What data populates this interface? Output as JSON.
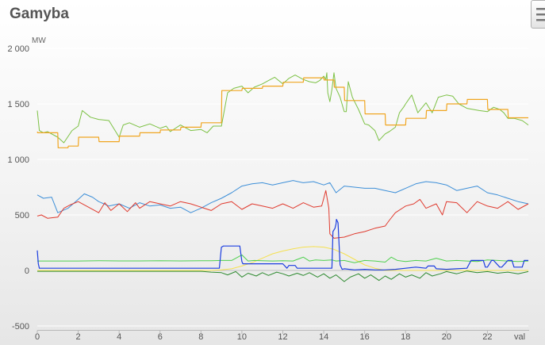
{
  "title": "Gamyba",
  "menu_icon": "hamburger-menu-icon",
  "chart_data": {
    "type": "line",
    "title": "Gamyba",
    "ylabel": "MW",
    "xlabel": "val",
    "ylim": [
      -500,
      2000
    ],
    "xlim": [
      0,
      24
    ],
    "grid": true,
    "legend": "none",
    "y_ticks": [
      -500,
      0,
      500,
      1000,
      1500,
      2000
    ],
    "y_tick_labels": [
      "-500",
      "0",
      "500",
      "1 000",
      "1 500",
      "2 000"
    ],
    "x_ticks": [
      0,
      2,
      4,
      6,
      8,
      10,
      12,
      14,
      16,
      18,
      20,
      22
    ],
    "x_tick_labels": [
      "0",
      "2",
      "4",
      "6",
      "8",
      "10",
      "12",
      "14",
      "16",
      "18",
      "20",
      "22"
    ],
    "series": [
      {
        "color": "#7cc144",
        "width": 1,
        "x": [
          0,
          0.1,
          0.3,
          0.5,
          1,
          1.3,
          1.7,
          2,
          2.2,
          2.6,
          3,
          3.5,
          4,
          4.2,
          4.5,
          5,
          5.5,
          6,
          6.3,
          6.5,
          7,
          7.5,
          8,
          8.3,
          8.6,
          9,
          9.3,
          9.6,
          10,
          10.3,
          10.6,
          11,
          11.3,
          11.6,
          12,
          12.3,
          12.6,
          13,
          13.3,
          13.6,
          13.8,
          14,
          14.1,
          14.15,
          14.2,
          14.3,
          14.4,
          14.5,
          14.6,
          14.8,
          15,
          15.1,
          15.2,
          15.4,
          15.7,
          16,
          16.2,
          16.5,
          16.7,
          17,
          17.2,
          17.5,
          17.7,
          17.9,
          18,
          18.3,
          18.6,
          19,
          19.3,
          19.6,
          20,
          20.3,
          20.6,
          21,
          21.3,
          21.6,
          22,
          22.3,
          22.6,
          22.8,
          23,
          23.3,
          23.7,
          24
        ],
        "y": [
          1440,
          1260,
          1240,
          1250,
          1200,
          1150,
          1260,
          1300,
          1440,
          1380,
          1360,
          1350,
          1200,
          1310,
          1330,
          1290,
          1320,
          1280,
          1300,
          1250,
          1310,
          1260,
          1270,
          1240,
          1300,
          1300,
          1600,
          1640,
          1660,
          1600,
          1650,
          1680,
          1710,
          1740,
          1680,
          1730,
          1760,
          1720,
          1700,
          1690,
          1710,
          1750,
          1720,
          1780,
          1600,
          1520,
          1630,
          1780,
          1640,
          1560,
          1430,
          1430,
          1700,
          1560,
          1450,
          1320,
          1310,
          1260,
          1170,
          1230,
          1250,
          1290,
          1420,
          1470,
          1500,
          1580,
          1420,
          1510,
          1420,
          1560,
          1580,
          1570,
          1500,
          1460,
          1450,
          1440,
          1430,
          1470,
          1450,
          1420,
          1370,
          1370,
          1350,
          1310
        ]
      },
      {
        "color": "#f0a520",
        "width": 1.2,
        "x": [
          0,
          0.02,
          1,
          1.02,
          1.5,
          1.52,
          2,
          2.02,
          3,
          3.02,
          4,
          4.02,
          5,
          5.02,
          6,
          6.02,
          7,
          7.02,
          8,
          8.02,
          9,
          9.02,
          10,
          10.02,
          11,
          11.02,
          12,
          12.02,
          13,
          13.02,
          14,
          14.02,
          14.5,
          14.52,
          15,
          15.02,
          16,
          16.02,
          17,
          17.02,
          18,
          18.02,
          19,
          19.02,
          20,
          20.02,
          21,
          21.02,
          22,
          22.02,
          23,
          23.02,
          24
        ],
        "y": [
          1250,
          1240,
          1240,
          1105,
          1105,
          1120,
          1120,
          1200,
          1200,
          1160,
          1160,
          1210,
          1210,
          1240,
          1240,
          1265,
          1265,
          1290,
          1290,
          1330,
          1330,
          1620,
          1620,
          1640,
          1640,
          1660,
          1660,
          1695,
          1695,
          1735,
          1735,
          1715,
          1715,
          1650,
          1650,
          1530,
          1530,
          1410,
          1410,
          1310,
          1310,
          1370,
          1370,
          1440,
          1440,
          1500,
          1500,
          1540,
          1540,
          1450,
          1450,
          1375,
          1375
        ]
      },
      {
        "color": "#3d8fd8",
        "width": 1,
        "x": [
          0,
          0.3,
          0.7,
          1,
          1.5,
          2,
          2.3,
          2.7,
          3,
          3.5,
          4,
          4.5,
          5,
          5.5,
          6,
          6.5,
          7,
          7.5,
          8,
          8.5,
          9,
          9.5,
          10,
          10.5,
          11,
          11.5,
          12,
          12.5,
          13,
          13.5,
          14,
          14.3,
          14.6,
          15,
          15.5,
          16,
          16.5,
          17,
          17.5,
          18,
          18.5,
          19,
          19.5,
          20,
          20.5,
          21,
          21.5,
          22,
          22.5,
          23,
          23.5,
          24
        ],
        "y": [
          680,
          650,
          660,
          520,
          560,
          640,
          690,
          660,
          620,
          580,
          600,
          560,
          610,
          580,
          590,
          560,
          570,
          520,
          560,
          610,
          650,
          700,
          760,
          780,
          790,
          770,
          790,
          810,
          790,
          800,
          770,
          790,
          700,
          760,
          750,
          740,
          740,
          720,
          700,
          740,
          780,
          800,
          790,
          770,
          720,
          740,
          760,
          700,
          680,
          650,
          620,
          600
        ]
      },
      {
        "color": "#e03a2e",
        "width": 1,
        "x": [
          0,
          0.2,
          0.5,
          1,
          1.3,
          1.6,
          2,
          2.5,
          3,
          3.3,
          3.6,
          4,
          4.4,
          4.8,
          5,
          5.5,
          6,
          6.5,
          7,
          7.5,
          8,
          8.5,
          9,
          9.5,
          10,
          10.5,
          11,
          11.5,
          12,
          12.5,
          13,
          13.5,
          13.9,
          14.1,
          14.25,
          14.3,
          14.5,
          15,
          15.5,
          16,
          16.5,
          17,
          17.2,
          17.5,
          18,
          18.4,
          18.7,
          19,
          19.5,
          19.8,
          20,
          20.5,
          21,
          21.5,
          22,
          22.5,
          23,
          23.5,
          24
        ],
        "y": [
          490,
          500,
          470,
          480,
          560,
          590,
          620,
          570,
          520,
          610,
          540,
          600,
          530,
          610,
          560,
          620,
          600,
          580,
          620,
          600,
          570,
          540,
          600,
          620,
          550,
          600,
          580,
          560,
          600,
          560,
          610,
          570,
          580,
          720,
          560,
          330,
          290,
          300,
          330,
          350,
          380,
          400,
          450,
          520,
          580,
          600,
          640,
          560,
          600,
          500,
          620,
          610,
          520,
          620,
          580,
          560,
          620,
          550,
          600
        ]
      },
      {
        "color": "#f5e050",
        "width": 1,
        "x": [
          0,
          8,
          8.5,
          9,
          9.5,
          10,
          10.5,
          11,
          11.5,
          12,
          12.5,
          13,
          13.5,
          14,
          14.5,
          15,
          15.5,
          16,
          16.5,
          17,
          17.5,
          18,
          19,
          20,
          21,
          22,
          23,
          24
        ],
        "y": [
          0,
          0,
          0,
          5,
          15,
          40,
          70,
          110,
          150,
          175,
          195,
          210,
          215,
          210,
          190,
          150,
          100,
          50,
          20,
          0,
          0,
          0,
          0,
          0,
          0,
          0,
          0,
          0
        ]
      },
      {
        "color": "#2e8a30",
        "width": 1,
        "x": [
          0,
          8,
          8.5,
          9,
          9.3,
          9.7,
          10,
          10.3,
          10.7,
          11,
          11.3,
          11.7,
          12,
          12.3,
          12.7,
          13,
          13.3,
          13.7,
          14,
          14.3,
          14.6,
          15,
          15.3,
          15.7,
          16,
          16.3,
          16.7,
          17,
          17.3,
          17.7,
          18,
          18.3,
          18.7,
          19,
          19.3,
          19.7,
          20,
          20.5,
          21,
          21.5,
          22,
          22.5,
          23,
          23.5,
          24
        ],
        "y": [
          -8,
          -8,
          -15,
          -20,
          -40,
          -10,
          -60,
          -25,
          -50,
          -20,
          -45,
          -15,
          -30,
          -50,
          -25,
          -45,
          -20,
          -60,
          -30,
          -70,
          -40,
          -100,
          -60,
          -30,
          -70,
          -40,
          -90,
          -50,
          -80,
          -30,
          -60,
          -40,
          -70,
          -20,
          -50,
          -30,
          -10,
          -30,
          -5,
          -20,
          -10,
          -25,
          -15,
          -30,
          -10
        ]
      },
      {
        "color": "#4fd04f",
        "width": 1,
        "x": [
          0,
          1,
          2,
          3,
          4,
          5,
          6,
          7,
          8,
          8.5,
          9,
          9.5,
          10,
          10.3,
          10.6,
          11,
          11.5,
          12,
          12.5,
          13,
          13.3,
          13.6,
          14,
          14.4,
          14.6,
          15,
          15.5,
          16,
          16.5,
          17,
          17.3,
          17.6,
          18,
          18.5,
          19,
          19.5,
          20,
          20.5,
          21,
          21.5,
          22,
          22.5,
          23,
          23.5,
          24
        ],
        "y": [
          85,
          85,
          85,
          88,
          86,
          86,
          88,
          86,
          88,
          88,
          90,
          90,
          140,
          85,
          90,
          88,
          85,
          88,
          85,
          120,
          85,
          95,
          90,
          95,
          85,
          90,
          70,
          90,
          85,
          75,
          120,
          90,
          80,
          90,
          85,
          110,
          85,
          90,
          85,
          80,
          95,
          90,
          85,
          80,
          85
        ]
      },
      {
        "color": "#1c3ee0",
        "width": 1.2,
        "x": [
          0,
          0.05,
          0.1,
          1,
          2,
          3,
          4,
          5,
          6,
          7,
          8,
          8.5,
          8.9,
          9,
          9.1,
          9.9,
          10,
          10.05,
          11,
          12,
          12.2,
          12.3,
          12.6,
          12.7,
          13,
          14,
          14.3,
          14.4,
          14.45,
          14.55,
          14.6,
          14.62,
          14.7,
          14.8,
          14.9,
          15,
          15.5,
          16,
          16.5,
          17,
          17.5,
          18,
          18.5,
          19,
          19.1,
          19.4,
          19.5,
          20,
          20.5,
          21,
          21.2,
          21.3,
          21.8,
          21.9,
          22,
          22.2,
          22.3,
          22.6,
          22.7,
          23,
          23.2,
          23.3,
          23.7,
          23.8,
          24
        ],
        "y": [
          180,
          60,
          20,
          20,
          20,
          20,
          20,
          20,
          20,
          20,
          20,
          20,
          20,
          210,
          220,
          220,
          80,
          60,
          60,
          60,
          20,
          45,
          45,
          20,
          20,
          20,
          20,
          20,
          350,
          380,
          420,
          460,
          430,
          50,
          10,
          15,
          5,
          10,
          5,
          5,
          10,
          20,
          30,
          20,
          40,
          40,
          15,
          10,
          15,
          20,
          90,
          90,
          90,
          30,
          30,
          90,
          90,
          30,
          30,
          90,
          90,
          30,
          30,
          90,
          90
        ]
      }
    ]
  }
}
